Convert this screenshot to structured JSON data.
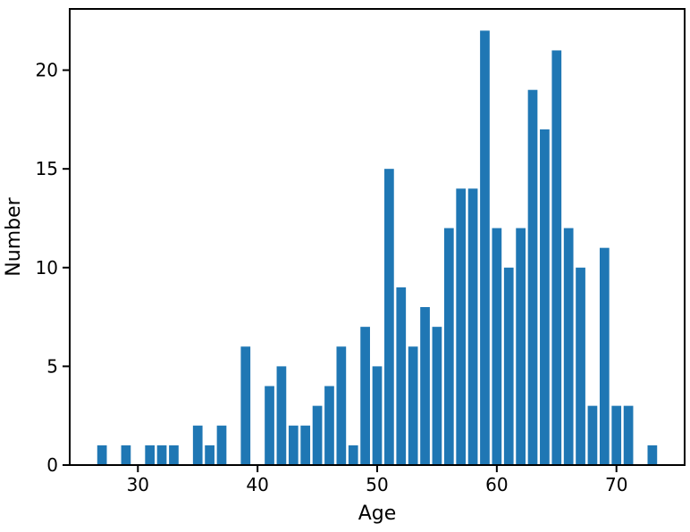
{
  "chart_data": {
    "type": "bar",
    "title": "",
    "xlabel": "Age",
    "ylabel": "Number",
    "categories": [
      27,
      29,
      31,
      32,
      33,
      35,
      36,
      37,
      39,
      41,
      42,
      43,
      44,
      45,
      46,
      47,
      48,
      49,
      50,
      51,
      52,
      53,
      54,
      55,
      56,
      57,
      58,
      59,
      60,
      61,
      62,
      63,
      64,
      65,
      66,
      67,
      68,
      69,
      70,
      71,
      73
    ],
    "values": [
      1,
      1,
      1,
      1,
      1,
      2,
      1,
      2,
      6,
      4,
      5,
      2,
      2,
      3,
      4,
      6,
      1,
      7,
      5,
      15,
      9,
      6,
      8,
      7,
      12,
      14,
      14,
      22,
      12,
      10,
      12,
      19,
      17,
      21,
      12,
      10,
      3,
      11,
      3,
      3,
      1
    ],
    "xticks": [
      30,
      40,
      50,
      60,
      70
    ],
    "yticks": [
      0,
      5,
      10,
      15,
      20
    ],
    "xlim": [
      24.3,
      75.7
    ],
    "ylim": [
      0,
      23.1
    ],
    "bar_width": 0.8,
    "bar_color": "#1f77b4",
    "axis_color": "#000000",
    "background_color": "#ffffff",
    "grid": false,
    "legend": "none"
  }
}
